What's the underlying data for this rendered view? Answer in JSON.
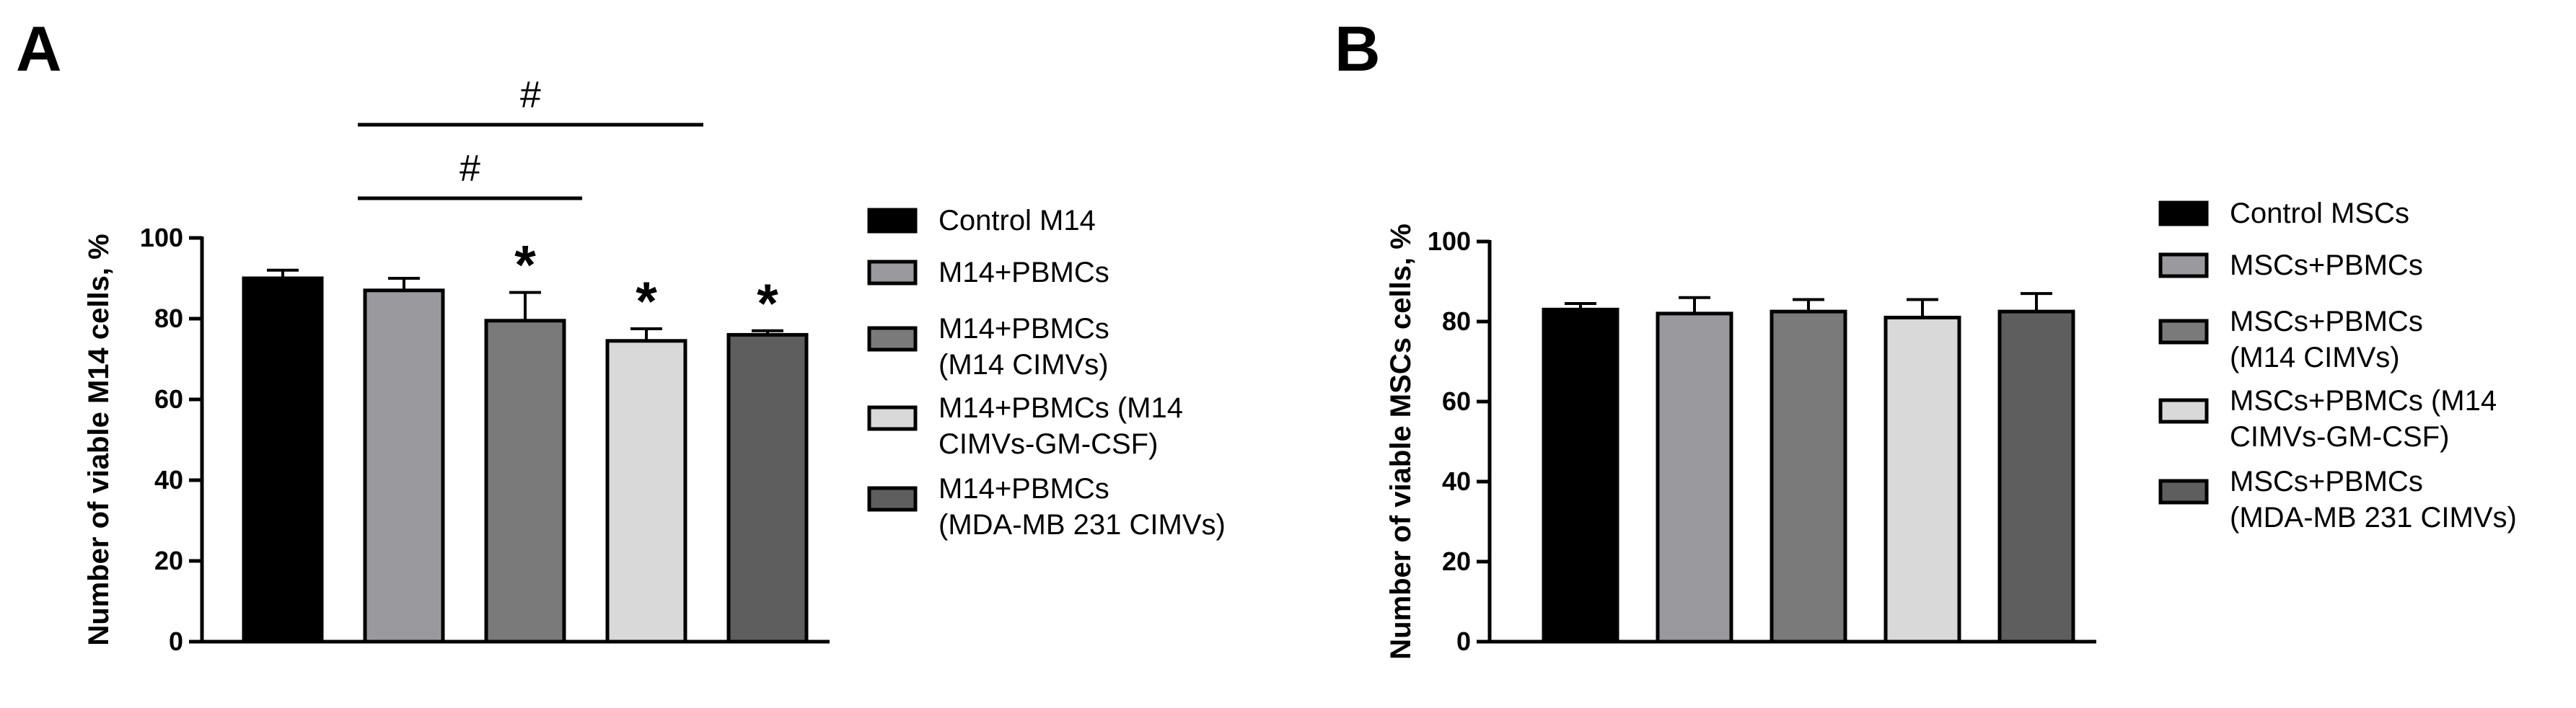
{
  "chart_data": [
    {
      "type": "bar",
      "panel": "A",
      "ylabel": "Number of viable M14 cells, %",
      "ylim": [
        0,
        100
      ],
      "yticks": [
        "0",
        "20",
        "40",
        "60",
        "80",
        "100"
      ],
      "categories": [
        "Control M14",
        "M14+PBMCs",
        "M14+PBMCs (M14 CIMVs)",
        "M14+PBMCs (M14 CIMVs-GM-CSF)",
        "M14+PBMCs (MDA-MB 231 CIMVs)"
      ],
      "values": [
        90,
        87,
        79.5,
        74.5,
        76
      ],
      "errors": [
        2,
        3,
        7,
        3,
        1
      ],
      "colors": [
        "#000000",
        "#9a9a9e",
        "#7a7a7a",
        "#d9d9d9",
        "#5e5e5e"
      ],
      "legend_lines": [
        [
          "Control M14"
        ],
        [
          "M14+PBMCs"
        ],
        [
          "M14+PBMCs",
          "(M14 CIMVs)"
        ],
        [
          "M14+PBMCs (M14",
          "CIMVs-GM-CSF)"
        ],
        [
          "M14+PBMCs",
          "(MDA-MB 231 CIMVs)"
        ]
      ],
      "annotations": [
        {
          "type": "star",
          "text": "*",
          "bar": 2
        },
        {
          "type": "star",
          "text": "*",
          "bar": 3
        },
        {
          "type": "star",
          "text": "*",
          "bar": 4
        },
        {
          "type": "bracket",
          "text": "#",
          "from": 1,
          "to": 3
        },
        {
          "type": "bracket",
          "text": "#",
          "from": 1,
          "to": 4
        }
      ]
    },
    {
      "type": "bar",
      "panel": "B",
      "ylabel": "Number of viable MSCs cells, %",
      "ylim": [
        0,
        100
      ],
      "yticks": [
        "0",
        "20",
        "40",
        "60",
        "80",
        "100"
      ],
      "categories": [
        "Control MSCs",
        "MSCs+PBMCs",
        "MSCs+PBMCs (M14 CIMVs)",
        "MSCs+PBMCs (M14 CIMVs-GM-CSF)",
        "MSCs+PBMCs (MDA-MB 231 CIMVs)"
      ],
      "values": [
        83,
        82,
        82.5,
        81,
        82.5
      ],
      "errors": [
        1.5,
        4,
        3,
        4.5,
        4.5
      ],
      "colors": [
        "#000000",
        "#9a9a9e",
        "#7a7a7a",
        "#d9d9d9",
        "#5e5e5e"
      ],
      "legend_lines": [
        [
          "Control MSCs"
        ],
        [
          "MSCs+PBMCs"
        ],
        [
          "MSCs+PBMCs",
          "(M14 CIMVs)"
        ],
        [
          "MSCs+PBMCs (M14",
          "CIMVs-GM-CSF)"
        ],
        [
          "MSCs+PBMCs",
          "(MDA-MB 231 CIMVs)"
        ]
      ],
      "annotations": []
    }
  ]
}
